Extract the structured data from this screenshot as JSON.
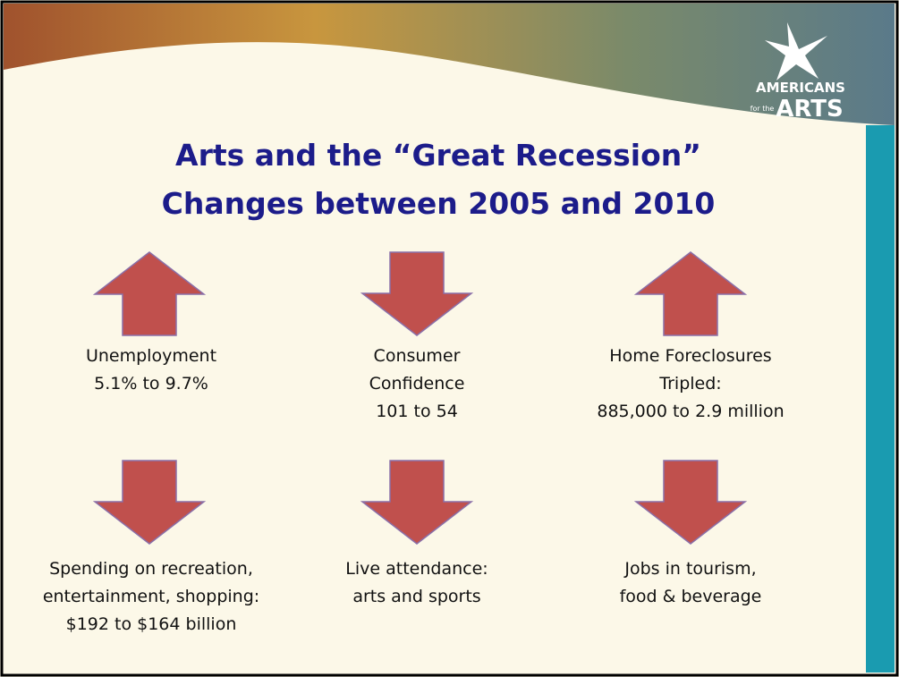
{
  "logo": {
    "line1": "AMERICANS",
    "line2": "for the",
    "line3": "ARTS"
  },
  "title": {
    "lines": [
      "Arts and the “Great Recession”",
      "Changes between 2005 and 2010"
    ]
  },
  "items": [
    {
      "direction": "up",
      "lines": [
        "Unemployment",
        "5.1% to 9.7%"
      ]
    },
    {
      "direction": "down",
      "lines": [
        "Consumer",
        "Confidence",
        "101 to 54"
      ]
    },
    {
      "direction": "up",
      "lines": [
        "Home Foreclosures",
        "Tripled:",
        "885,000 to 2.9 million"
      ]
    },
    {
      "direction": "down",
      "lines": [
        "Spending on recreation,",
        "entertainment, shopping:",
        "$192 to $164 billion"
      ]
    },
    {
      "direction": "down",
      "lines": [
        "Live attendance:",
        "arts and sports"
      ]
    },
    {
      "direction": "down",
      "lines": [
        "Jobs in tourism,",
        "food & beverage"
      ]
    }
  ]
}
